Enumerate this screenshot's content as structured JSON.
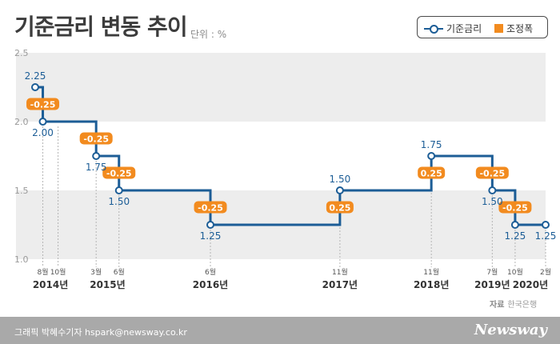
{
  "title": "기준금리 변동 추이",
  "unit": "단위 : %",
  "legend": {
    "rate": "기준금리",
    "adjust": "조정폭"
  },
  "source": {
    "label": "자료",
    "name": "한국은행"
  },
  "credit": "그래픽 박혜수기자 hspark@newsway.co.kr",
  "brand": "Newsway",
  "colors": {
    "line": "#1c5d96",
    "adjust": "#f28b1f",
    "band": "#ededed",
    "text": "#1c5d96"
  },
  "chart_data": {
    "type": "line",
    "step": true,
    "ylim": [
      1.0,
      2.5
    ],
    "yticks": [
      "1.0",
      "1.5",
      "2.0",
      "2.5"
    ],
    "points": [
      {
        "date": "2014-07",
        "value": 2.25,
        "label": "2.25"
      },
      {
        "date": "2014-08",
        "value": 2.0,
        "label": "2.00",
        "adj": "-0.25",
        "month": "8월"
      },
      {
        "date": "2014-10",
        "value": 2.0,
        "month": "10월"
      },
      {
        "date": "2015-03",
        "value": 1.75,
        "label": "1.75",
        "adj": "-0.25",
        "month": "3월"
      },
      {
        "date": "2015-06",
        "value": 1.5,
        "label": "1.50",
        "adj": "-0.25",
        "month": "6월"
      },
      {
        "date": "2016-06",
        "value": 1.25,
        "label": "1.25",
        "adj": "-0.25",
        "month": "6월"
      },
      {
        "date": "2017-11",
        "value": 1.5,
        "label": "1.50",
        "adj": "0.25",
        "month": "11월"
      },
      {
        "date": "2018-11",
        "value": 1.75,
        "label": "1.75",
        "adj": "0.25",
        "month": "11월"
      },
      {
        "date": "2019-07",
        "value": 1.5,
        "label": "1.50",
        "adj": "-0.25",
        "month": "7월"
      },
      {
        "date": "2019-10",
        "value": 1.25,
        "label": "1.25",
        "adj": "-0.25",
        "month": "10월"
      },
      {
        "date": "2020-02",
        "value": 1.25,
        "label": "1.25",
        "month": "2월"
      }
    ],
    "years": [
      "2014년",
      "2015년",
      "2016년",
      "2017년",
      "2018년",
      "2019년",
      "2020년"
    ]
  }
}
